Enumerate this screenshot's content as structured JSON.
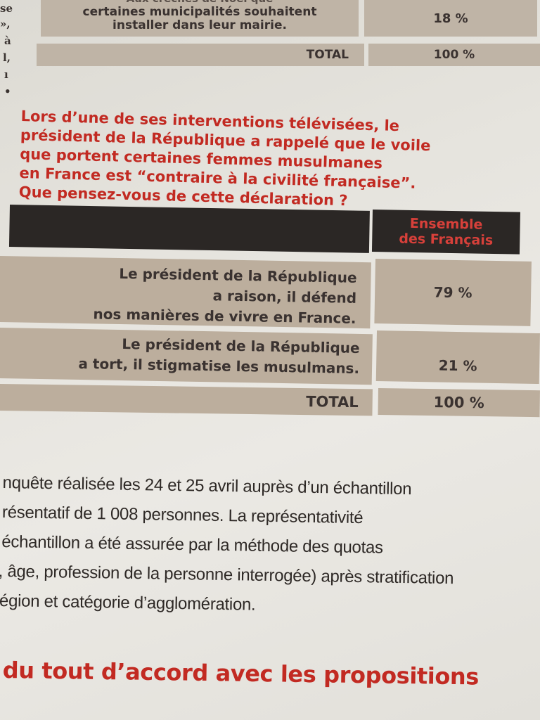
{
  "margin_fragments": [
    "se",
    "»,",
    "à",
    "l,",
    "ı",
    "•"
  ],
  "top_table": {
    "partial_label_top": "Aux crèches de Noël que",
    "label_lines": [
      "certaines municipalités souhaitent",
      "installer dans leur mairie."
    ],
    "value": "18 %",
    "total_label": "TOTAL",
    "total_value": "100 %"
  },
  "question": {
    "lines": [
      "Lors d’une de ses interventions télévisées, le",
      "président de la République a rappelé que le voile",
      "que portent certaines femmes musulmanes",
      "en France est “contraire à la civilité française”.",
      "Que pensez-vous de cette déclaration ?"
    ]
  },
  "main_table": {
    "column_header_lines": [
      "Ensemble",
      "des Français"
    ],
    "rows": [
      {
        "label_lines": [
          "Le président de la République",
          "a raison, il défend",
          "nos manières de vivre en France."
        ],
        "value": "79 %"
      },
      {
        "label_lines": [
          "Le président de la République",
          "a tort, il stigmatise les musulmans."
        ],
        "value": "21 %"
      }
    ],
    "total_label": "TOTAL",
    "total_value": "100 %"
  },
  "methodology": {
    "lines": [
      "nquête réalisée les 24 et 25 avril auprès d’un échantillon",
      "résentatif de 1 008 personnes. La représentativité",
      "échantillon a été assurée par la méthode des quotas",
      ", âge, profession de la personne interrogée) après stratification",
      "égion et catégorie d’agglomération."
    ]
  },
  "next_heading": "du tout d’accord avec les propositions",
  "colors": {
    "accent_red": "#c22a22",
    "table_fill": "#bcae9d",
    "header_dark": "#2b2725"
  }
}
